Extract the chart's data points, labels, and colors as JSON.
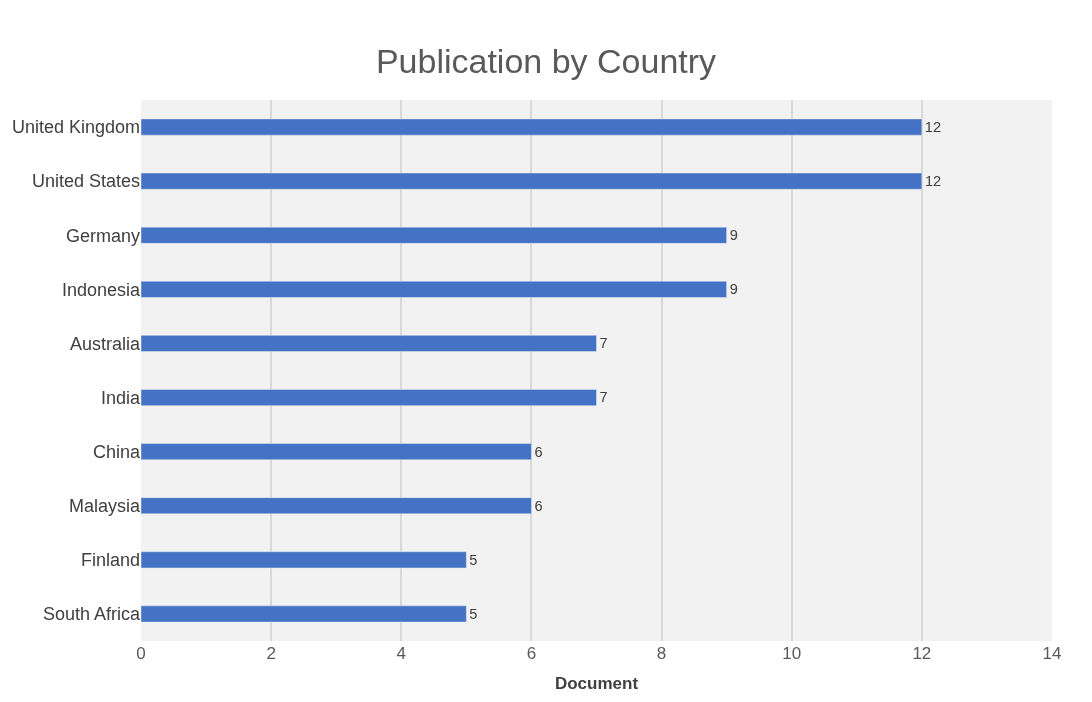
{
  "chart_data": {
    "type": "bar",
    "orientation": "horizontal",
    "title": "Publication by Country",
    "xlabel": "Document",
    "categories": [
      "United Kingdom",
      "United States",
      "Germany",
      "Indonesia",
      "Australia",
      "India",
      "China",
      "Malaysia",
      "Finland",
      "South Africa"
    ],
    "values": [
      12,
      12,
      9,
      9,
      7,
      7,
      6,
      6,
      5,
      5
    ],
    "color": "#4472c4",
    "xlim": [
      0,
      14
    ],
    "xticks": [
      0,
      2,
      4,
      6,
      8,
      10,
      12,
      14
    ],
    "grid": "x",
    "data_labels": true,
    "legend": false
  }
}
